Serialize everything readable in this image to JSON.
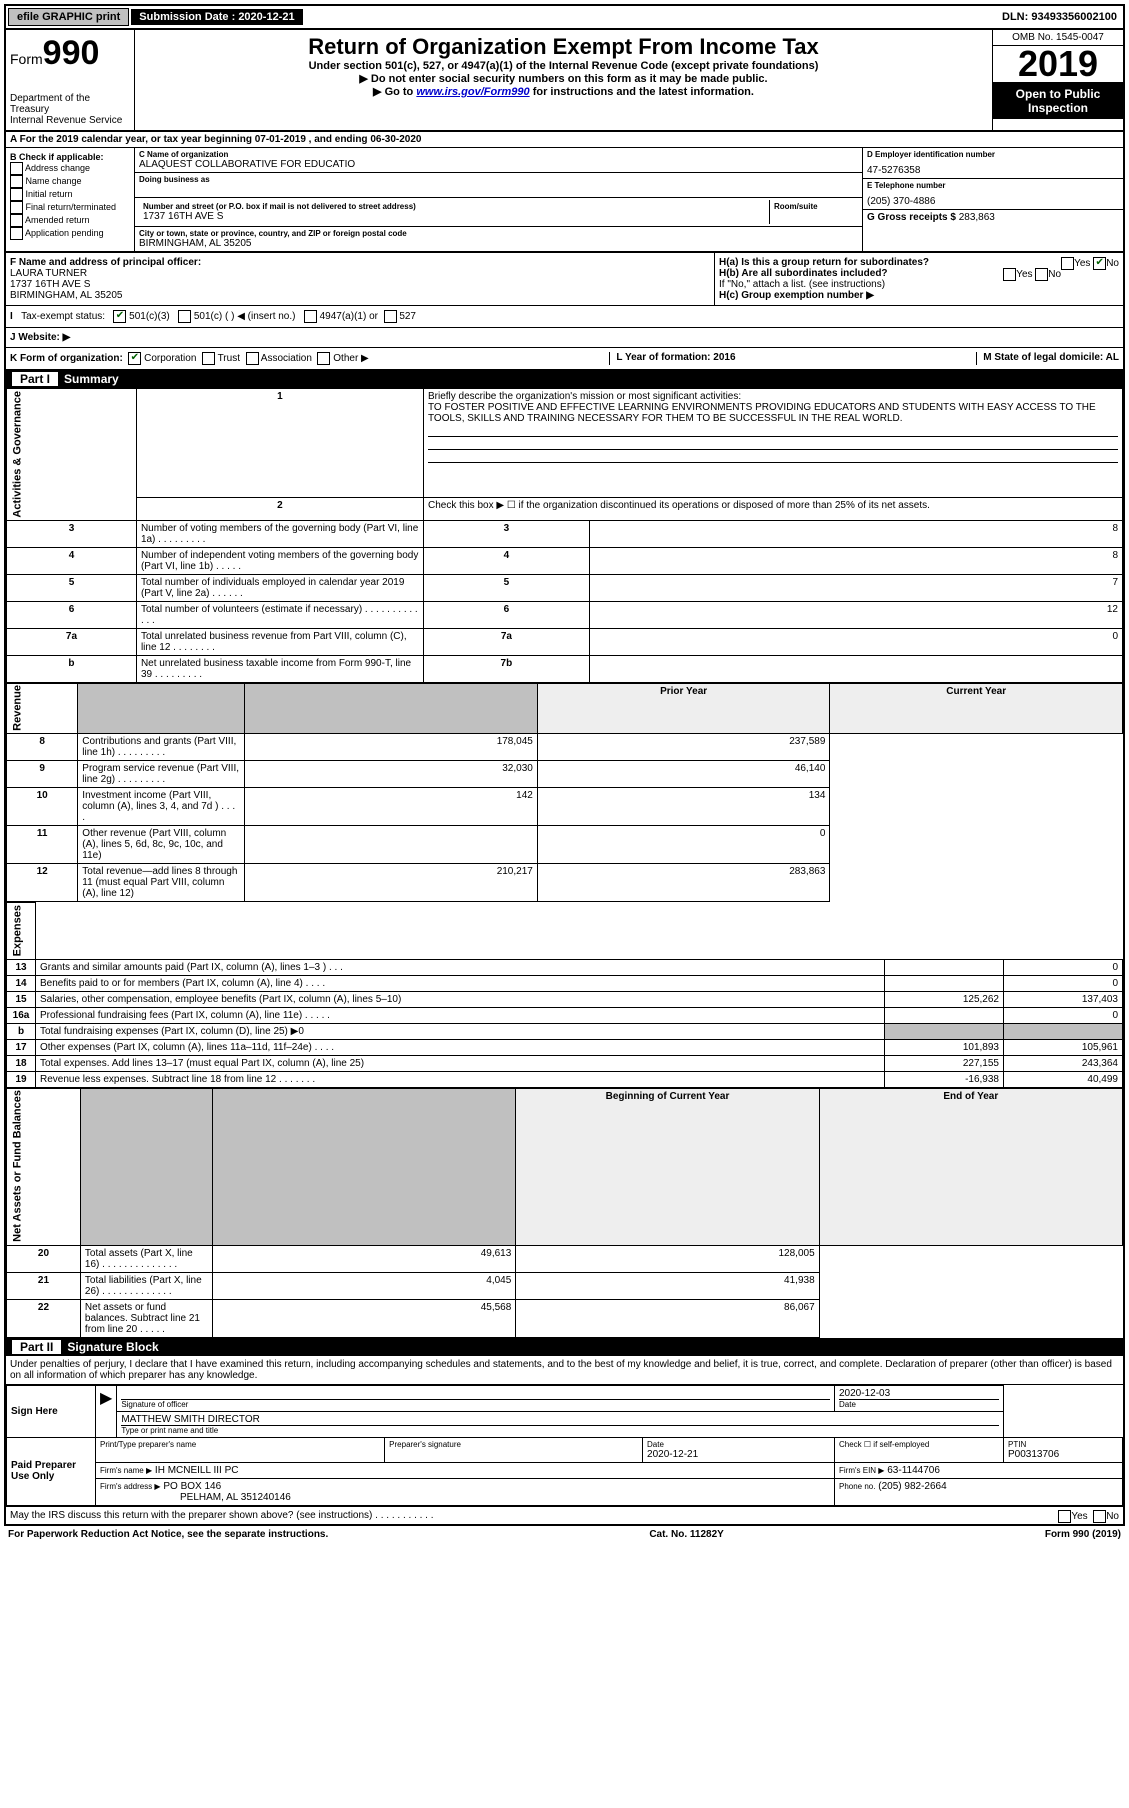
{
  "topbar": {
    "efile": "efile GRAPHIC print",
    "subdate_label": "Submission Date : 2020-12-21",
    "dln": "DLN: 93493356002100"
  },
  "header": {
    "form_word": "Form",
    "form_num": "990",
    "dept": "Department of the Treasury\nInternal Revenue Service",
    "title": "Return of Organization Exempt From Income Tax",
    "sub1": "Under section 501(c), 527, or 4947(a)(1) of the Internal Revenue Code (except private foundations)",
    "sub2": "▶ Do not enter social security numbers on this form as it may be made public.",
    "sub3_pre": "▶ Go to ",
    "sub3_link": "www.irs.gov/Form990",
    "sub3_post": " for instructions and the latest information.",
    "omb": "OMB No. 1545-0047",
    "year": "2019",
    "inspection": "Open to Public Inspection"
  },
  "period": "A For the 2019 calendar year, or tax year beginning 07-01-2019   , and ending 06-30-2020",
  "secB": {
    "heading": "B Check if applicable:",
    "opts": [
      "Address change",
      "Name change",
      "Initial return",
      "Final return/terminated",
      "Amended return",
      "Application pending"
    ],
    "c_lbl": "C Name of organization",
    "c_val": "ALAQUEST COLLABORATIVE FOR EDUCATIO",
    "dba_lbl": "Doing business as",
    "street_lbl": "Number and street (or P.O. box if mail is not delivered to street address)",
    "street_val": "1737 16TH AVE S",
    "room_lbl": "Room/suite",
    "city_lbl": "City or town, state or province, country, and ZIP or foreign postal code",
    "city_val": "BIRMINGHAM, AL  35205",
    "d_lbl": "D Employer identification number",
    "d_val": "47-5276358",
    "e_lbl": "E Telephone number",
    "e_val": "(205) 370-4886",
    "g_lbl": "G Gross receipts $ ",
    "g_val": "283,863"
  },
  "secF": {
    "lbl": "F  Name and address of principal officer:",
    "name": "LAURA TURNER",
    "addr1": "1737 16TH AVE S",
    "addr2": "BIRMINGHAM, AL  35205",
    "ha": "H(a)  Is this a group return for subordinates?",
    "hb": "H(b)  Are all subordinates included?",
    "hb_note": "If \"No,\" attach a list. (see instructions)",
    "hc": "H(c)  Group exemption number ▶",
    "yes": "Yes",
    "no": "No"
  },
  "taxstatus": {
    "lbl": "Tax-exempt status:",
    "o1": "501(c)(3)",
    "o2": "501(c) (  ) ◀ (insert no.)",
    "o3": "4947(a)(1) or",
    "o4": "527"
  },
  "website": {
    "lbl": "J   Website: ▶"
  },
  "krow": {
    "k": "K Form of organization:",
    "opts": [
      "Corporation",
      "Trust",
      "Association",
      "Other ▶"
    ],
    "l": "L Year of formation: 2016",
    "m": "M State of legal domicile: AL"
  },
  "part1": {
    "header": "Summary",
    "l1_lbl": "Briefly describe the organization's mission or most significant activities:",
    "l1_txt": "TO FOSTER POSITIVE AND EFFECTIVE LEARNING ENVIRONMENTS PROVIDING EDUCATORS AND STUDENTS WITH EASY ACCESS TO THE TOOLS, SKILLS AND TRAINING NECESSARY FOR THEM TO BE SUCCESSFUL IN THE REAL WORLD.",
    "l2": "Check this box ▶ ☐  if the organization discontinued its operations or disposed of more than 25% of its net assets.",
    "gov_rows": [
      {
        "n": "3",
        "t": "Number of voting members of the governing body (Part VI, line 1a)   .   .   .   .   .   .   .   .   .",
        "box": "3",
        "v": "8"
      },
      {
        "n": "4",
        "t": "Number of independent voting members of the governing body (Part VI, line 1b)   .   .   .   .   .",
        "box": "4",
        "v": "8"
      },
      {
        "n": "5",
        "t": "Total number of individuals employed in calendar year 2019 (Part V, line 2a)   .   .   .   .   .   .",
        "box": "5",
        "v": "7"
      },
      {
        "n": "6",
        "t": "Total number of volunteers (estimate if necessary)    .   .   .   .   .   .   .   .   .   .   .   .   .",
        "box": "6",
        "v": "12"
      },
      {
        "n": "7a",
        "t": "Total unrelated business revenue from Part VIII, column (C), line 12   .   .   .   .   .   .   .   .",
        "box": "7a",
        "v": "0"
      },
      {
        "n": "b",
        "t": "Net unrelated business taxable income from Form 990-T, line 39    .   .   .   .   .   .   .   .   .",
        "box": "7b",
        "v": ""
      }
    ],
    "pyh": "Prior Year",
    "cyh": "Current Year",
    "rev_rows": [
      {
        "n": "8",
        "t": "Contributions and grants (Part VIII, line 1h)    .   .   .   .   .   .   .   .   .",
        "py": "178,045",
        "cy": "237,589"
      },
      {
        "n": "9",
        "t": "Program service revenue (Part VIII, line 2g)    .   .   .   .   .   .   .   .   .",
        "py": "32,030",
        "cy": "46,140"
      },
      {
        "n": "10",
        "t": "Investment income (Part VIII, column (A), lines 3, 4, and 7d )    .   .   .   .",
        "py": "142",
        "cy": "134"
      },
      {
        "n": "11",
        "t": "Other revenue (Part VIII, column (A), lines 5, 6d, 8c, 9c, 10c, and 11e)",
        "py": "",
        "cy": "0"
      },
      {
        "n": "12",
        "t": "Total revenue—add lines 8 through 11 (must equal Part VIII, column (A), line 12)",
        "py": "210,217",
        "cy": "283,863"
      }
    ],
    "exp_rows": [
      {
        "n": "13",
        "t": "Grants and similar amounts paid (Part IX, column (A), lines 1–3 )   .   .   .",
        "py": "",
        "cy": "0"
      },
      {
        "n": "14",
        "t": "Benefits paid to or for members (Part IX, column (A), line 4)   .   .   .   .",
        "py": "",
        "cy": "0"
      },
      {
        "n": "15",
        "t": "Salaries, other compensation, employee benefits (Part IX, column (A), lines 5–10)",
        "py": "125,262",
        "cy": "137,403"
      },
      {
        "n": "16a",
        "t": "Professional fundraising fees (Part IX, column (A), line 11e)   .   .   .   .   .",
        "py": "",
        "cy": "0"
      },
      {
        "n": "b",
        "t": "Total fundraising expenses (Part IX, column (D), line 25) ▶0",
        "py": "GREY",
        "cy": "GREY"
      },
      {
        "n": "17",
        "t": "Other expenses (Part IX, column (A), lines 11a–11d, 11f–24e)   .   .   .   .",
        "py": "101,893",
        "cy": "105,961"
      },
      {
        "n": "18",
        "t": "Total expenses. Add lines 13–17 (must equal Part IX, column (A), line 25)",
        "py": "227,155",
        "cy": "243,364"
      },
      {
        "n": "19",
        "t": "Revenue less expenses. Subtract line 18 from line 12   .   .   .   .   .   .   .",
        "py": "-16,938",
        "cy": "40,499"
      }
    ],
    "na_head_py": "Beginning of Current Year",
    "na_head_cy": "End of Year",
    "na_rows": [
      {
        "n": "20",
        "t": "Total assets (Part X, line 16)   .   .   .   .   .   .   .   .   .   .   .   .   .   .",
        "py": "49,613",
        "cy": "128,005"
      },
      {
        "n": "21",
        "t": "Total liabilities (Part X, line 26)   .   .   .   .   .   .   .   .   .   .   .   .   .",
        "py": "4,045",
        "cy": "41,938"
      },
      {
        "n": "22",
        "t": "Net assets or fund balances. Subtract line 21 from line 20   .   .   .   .   .",
        "py": "45,568",
        "cy": "86,067"
      }
    ],
    "vlabels": {
      "gov": "Activities & Governance",
      "rev": "Revenue",
      "exp": "Expenses",
      "na": "Net Assets or Fund Balances"
    }
  },
  "part2": {
    "header": "Signature Block",
    "decl": "Under penalties of perjury, I declare that I have examined this return, including accompanying schedules and statements, and to the best of my knowledge and belief, it is true, correct, and complete. Declaration of preparer (other than officer) is based on all information of which preparer has any knowledge.",
    "sign_here": "Sign Here",
    "sig_officer": "Signature of officer",
    "sig_date": "2020-12-03",
    "date_lbl": "Date",
    "typed": "MATTHEW SMITH  DIRECTOR",
    "typed_lbl": "Type or print name and title",
    "paid": "Paid Preparer Use Only",
    "p_name_lbl": "Print/Type preparer's name",
    "p_sig_lbl": "Preparer's signature",
    "p_date": "2020-12-21",
    "p_check": "Check ☐ if self-employed",
    "ptin_lbl": "PTIN",
    "ptin": "P00313706",
    "firm_name_lbl": "Firm's name   ▶",
    "firm_name": "IH MCNEILL III PC",
    "firm_ein_lbl": "Firm's EIN ▶",
    "firm_ein": "63-1144706",
    "firm_addr_lbl": "Firm's address ▶",
    "firm_addr": "PO BOX 146",
    "firm_addr2": "PELHAM, AL  351240146",
    "firm_phone_lbl": "Phone no.",
    "firm_phone": "(205) 982-2664",
    "discuss": "May the IRS discuss this return with the preparer shown above? (see instructions)   .   .   .   .   .   .   .   .   .   .   ."
  },
  "footer": {
    "l": "For Paperwork Reduction Act Notice, see the separate instructions.",
    "m": "Cat. No. 11282Y",
    "r": "Form 990 (2019)"
  }
}
